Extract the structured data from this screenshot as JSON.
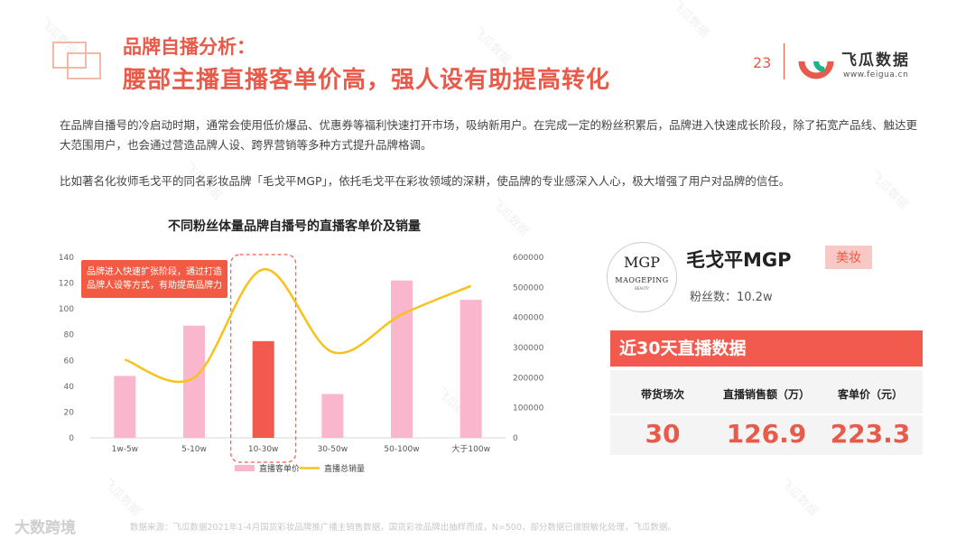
{
  "header": {
    "title_small": "品牌自播分析：",
    "title_main": "腰部主播直播客单价高，强人设有助提高转化",
    "page_number": "23",
    "brand_name": "飞瓜数据",
    "brand_url": "www.feigua.cn"
  },
  "body": {
    "paragraph1": "在品牌自播号的冷启动时期，通常会使用低价爆品、优惠券等福利快速打开市场，吸纳新用户。在完成一定的粉丝积累后，品牌进入快速成长阶段，除了拓宽产品线、触达更大范围用户，也会通过营造品牌人设、跨界营销等多种方式提升品牌格调。",
    "paragraph2": "比如著名化妆师毛戈平的同名彩妆品牌「毛戈平MGP」，依托毛戈平在彩妆领域的深耕，使品牌的专业感深入人心，极大增强了用户对品牌的信任。"
  },
  "chart_data": {
    "type": "bar",
    "title": "不同粉丝体量品牌自播号的直播客单价及销量",
    "categories": [
      "1w-5w",
      "5-10w",
      "10-30w",
      "30-50w",
      "50-100w",
      "大于100w"
    ],
    "series": [
      {
        "name": "直播客单价",
        "type": "bar",
        "axis": "left",
        "values": [
          48,
          87,
          75,
          34,
          122,
          107
        ],
        "color": "#f9b6cc",
        "highlight_index": 2,
        "highlight_color": "#f25a4d"
      },
      {
        "name": "直播总销量",
        "type": "line",
        "axis": "right",
        "values": [
          260000,
          200000,
          560000,
          285000,
          410000,
          505000
        ],
        "color": "#f7c21a"
      }
    ],
    "y_left": {
      "ticks": [
        0,
        20,
        40,
        60,
        80,
        100,
        120,
        140
      ],
      "ylim": [
        0,
        140
      ]
    },
    "y_right": {
      "ticks": [
        0,
        100000,
        200000,
        300000,
        400000,
        500000,
        600000
      ],
      "ylim": [
        0,
        600000
      ]
    },
    "annotation": "品牌进入快速扩张阶段，通过打造品牌人设等方式，有助提高品牌力",
    "legend_position": "bottom"
  },
  "profile": {
    "logo_monogram": "MGP",
    "logo_name": "MAOGEPING",
    "logo_sub": "BEAUTY",
    "name": "毛戈平MGP",
    "tag": "美妆",
    "fans": "粉丝数：10.2w",
    "stats_title": "近30天直播数据",
    "stats": [
      {
        "label": "带货场次",
        "value": "30"
      },
      {
        "label": "直播销售额（万）",
        "value": "126.9"
      },
      {
        "label": "客单价（元）",
        "value": "223.3"
      }
    ]
  },
  "footer": {
    "source": "数据来源：飞瓜数据2021年1-4月国货彩妆品牌推广播主销售数据，国货彩妆品牌出抽样而成，N=500，部分数据已做脱敏化处理，飞瓜数据。",
    "watermark": "大数跨境"
  },
  "colors": {
    "accent": "#e85a4a",
    "bar": "#f9b6cc",
    "bar_highlight": "#f25a4d",
    "line": "#f7c21a"
  }
}
